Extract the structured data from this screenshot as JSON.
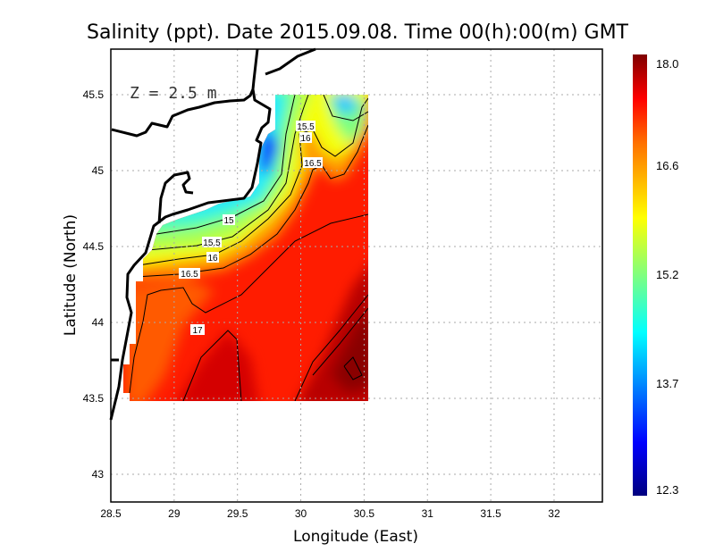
{
  "title": "Salinity (ppt). Date 2015.09.08. Time 00(h):00(m)  GMT",
  "depth_label": "Z = 2.5 m",
  "x_axis_label": "Longitude (East)",
  "y_axis_label": "Latitude (North)",
  "chart_data": {
    "type": "heatmap",
    "title": "Salinity (ppt). Date 2015.09.08. Time 00(h):00(m)  GMT",
    "xlabel": "Longitude (East)",
    "ylabel": "Latitude (North)",
    "xlim": [
      28.5,
      32.4
    ],
    "ylim": [
      42.8,
      45.8
    ],
    "x_ticks": [
      "28.5",
      "29",
      "29.5",
      "30",
      "30.5",
      "31",
      "31.5",
      "32"
    ],
    "y_ticks": [
      "45.5",
      "45",
      "44.5",
      "44",
      "43.5",
      "43"
    ],
    "grid": true,
    "data_extent": {
      "lon": [
        28.6,
        30.55
      ],
      "lat": [
        43.48,
        45.5
      ]
    },
    "contour_levels": [
      15,
      15.5,
      16,
      16.5,
      17,
      17.5
    ],
    "contour_labels": [
      "15.5",
      "16",
      "16.5",
      "15",
      "15.5",
      "16",
      "16.5",
      "17"
    ],
    "colorbar": {
      "range": [
        12.3,
        18.0
      ],
      "tick_labels": [
        "18.0",
        "16.6",
        "15.2",
        "13.7",
        "12.3"
      ],
      "colormap": "jet",
      "placement": "right"
    }
  }
}
